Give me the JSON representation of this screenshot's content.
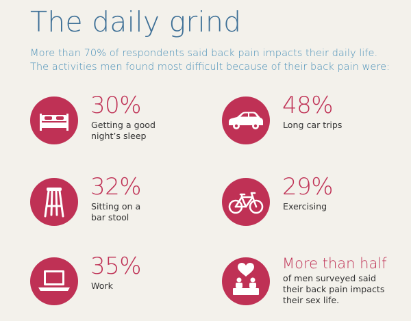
{
  "title": "The daily grind",
  "intro": {
    "line1": "More than 70% of respondents said back pain impacts their daily life.",
    "line2": "The activities men found most difficult because of their back pain were:"
  },
  "colors": {
    "accent": "#bf3155",
    "title": "#3d6f96",
    "intro": "#4a90b8",
    "background": "#f3f1eb",
    "body_text": "#333333"
  },
  "stats": [
    {
      "icon": "bed-icon",
      "value": "30%",
      "lines": [
        "Getting a good",
        "night’s sleep"
      ]
    },
    {
      "icon": "car-icon",
      "value": "48%",
      "lines": [
        "Long car trips"
      ]
    },
    {
      "icon": "bar-stool-icon",
      "value": "32%",
      "lines": [
        "Sitting on a",
        "bar stool"
      ]
    },
    {
      "icon": "bicycle-icon",
      "value": "29%",
      "lines": [
        "Exercising"
      ]
    },
    {
      "icon": "laptop-icon",
      "value": "35%",
      "lines": [
        "Work"
      ]
    },
    {
      "icon": "heart-couple-icon",
      "value": "More than half",
      "lines": [
        "of men surveyed said",
        "their back pain impacts",
        "their sex life."
      ]
    }
  ]
}
